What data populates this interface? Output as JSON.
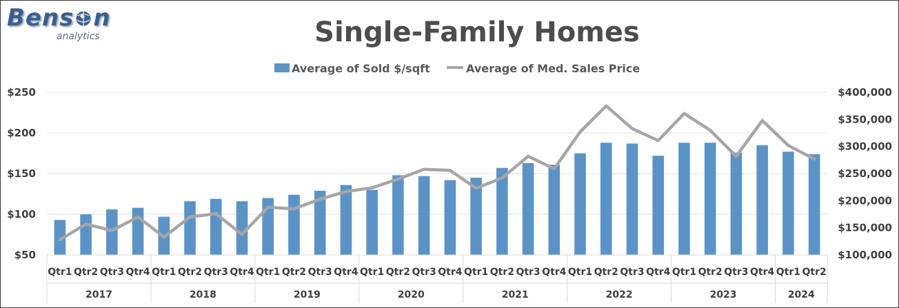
{
  "logo": {
    "brand_prefix": "Bens",
    "brand_suffix": "n",
    "sub": "analytics"
  },
  "chart_data": {
    "type": "bar+line",
    "title": "Single-Family Homes",
    "colors": {
      "bars": "#5b93c7",
      "line": "#a6a6a6",
      "grid": "#e2e2e2",
      "text": "#404040"
    },
    "categories": [
      "Qtr1",
      "Qtr2",
      "Qtr3",
      "Qtr4",
      "Qtr1",
      "Qtr2",
      "Qtr3",
      "Qtr4",
      "Qtr1",
      "Qtr2",
      "Qtr3",
      "Qtr4",
      "Qtr1",
      "Qtr2",
      "Qtr3",
      "Qtr4",
      "Qtr1",
      "Qtr2",
      "Qtr3",
      "Qtr4",
      "Qtr1",
      "Qtr2",
      "Qtr3",
      "Qtr4",
      "Qtr1",
      "Qtr2",
      "Qtr3",
      "Qtr4",
      "Qtr1",
      "Qtr2"
    ],
    "years": [
      {
        "label": "2017",
        "count": 4
      },
      {
        "label": "2018",
        "count": 4
      },
      {
        "label": "2019",
        "count": 4
      },
      {
        "label": "2020",
        "count": 4
      },
      {
        "label": "2021",
        "count": 4
      },
      {
        "label": "2022",
        "count": 4
      },
      {
        "label": "2023",
        "count": 4
      },
      {
        "label": "2024",
        "count": 2
      }
    ],
    "series": [
      {
        "name": "Average of Sold $/sqft",
        "type": "bar",
        "axis": "left",
        "values": [
          93,
          100,
          106,
          108,
          97,
          116,
          119,
          116,
          120,
          124,
          129,
          136,
          130,
          148,
          147,
          142,
          145,
          157,
          163,
          161,
          175,
          188,
          187,
          172,
          188,
          188,
          176,
          185,
          177,
          174
        ]
      },
      {
        "name": "Average of Med. Sales Price",
        "type": "line",
        "axis": "right",
        "values": [
          128000,
          157000,
          145000,
          170000,
          133000,
          170000,
          176000,
          138000,
          188000,
          185000,
          203000,
          217000,
          224000,
          240000,
          258000,
          256000,
          223000,
          242000,
          282000,
          259000,
          327000,
          375000,
          333000,
          311000,
          361000,
          330000,
          282000,
          348000,
          302000,
          277000
        ]
      }
    ],
    "y_left": {
      "min": 50,
      "max": 250,
      "step": 50,
      "ticks": [
        "$50",
        "$100",
        "$150",
        "$200",
        "$250"
      ]
    },
    "y_right": {
      "min": 100000,
      "max": 400000,
      "step": 50000,
      "ticks": [
        "$100,000",
        "$150,000",
        "$200,000",
        "$250,000",
        "$300,000",
        "$350,000",
        "$400,000"
      ]
    },
    "legend_position": "top-center",
    "grid": true
  }
}
